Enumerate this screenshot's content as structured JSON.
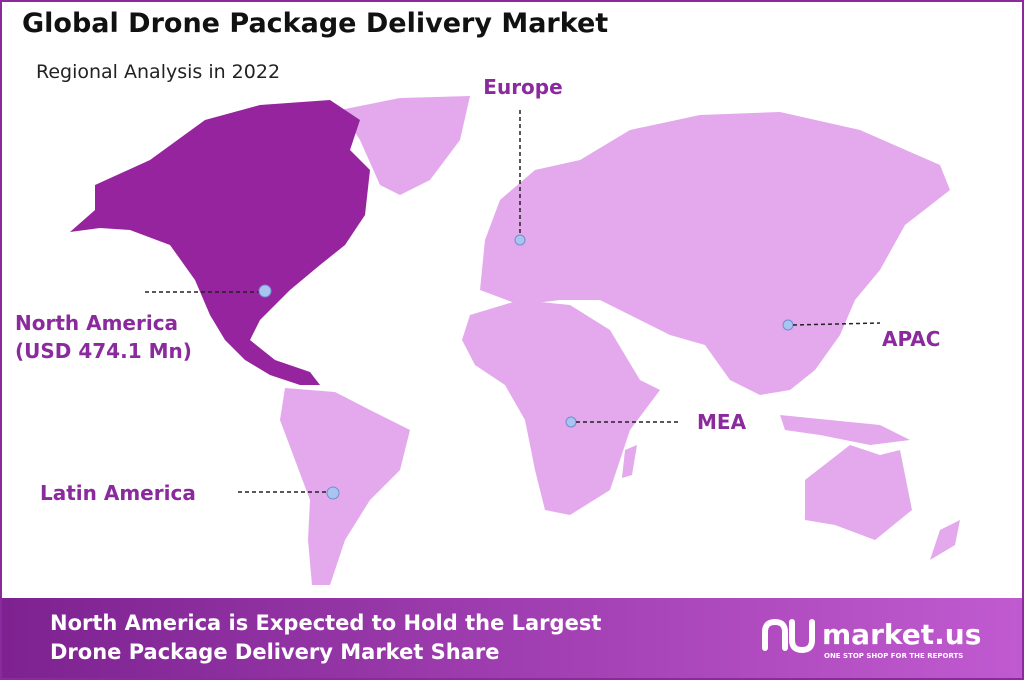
{
  "header": {
    "title": "Global Drone Package Delivery Market",
    "subtitle": "Regional Analysis in 2022"
  },
  "regions": [
    {
      "name": "North America",
      "value": "(USD 474.1 Mn)"
    },
    {
      "name": "Europe"
    },
    {
      "name": "APAC"
    },
    {
      "name": "MEA"
    },
    {
      "name": "Latin America"
    }
  ],
  "footer": {
    "lines": [
      "North America is Expected to Hold the Largest",
      "Drone Package Delivery Market Share"
    ],
    "brand": "market.us",
    "tagline": "ONE STOP SHOP FOR THE REPORTS"
  }
}
